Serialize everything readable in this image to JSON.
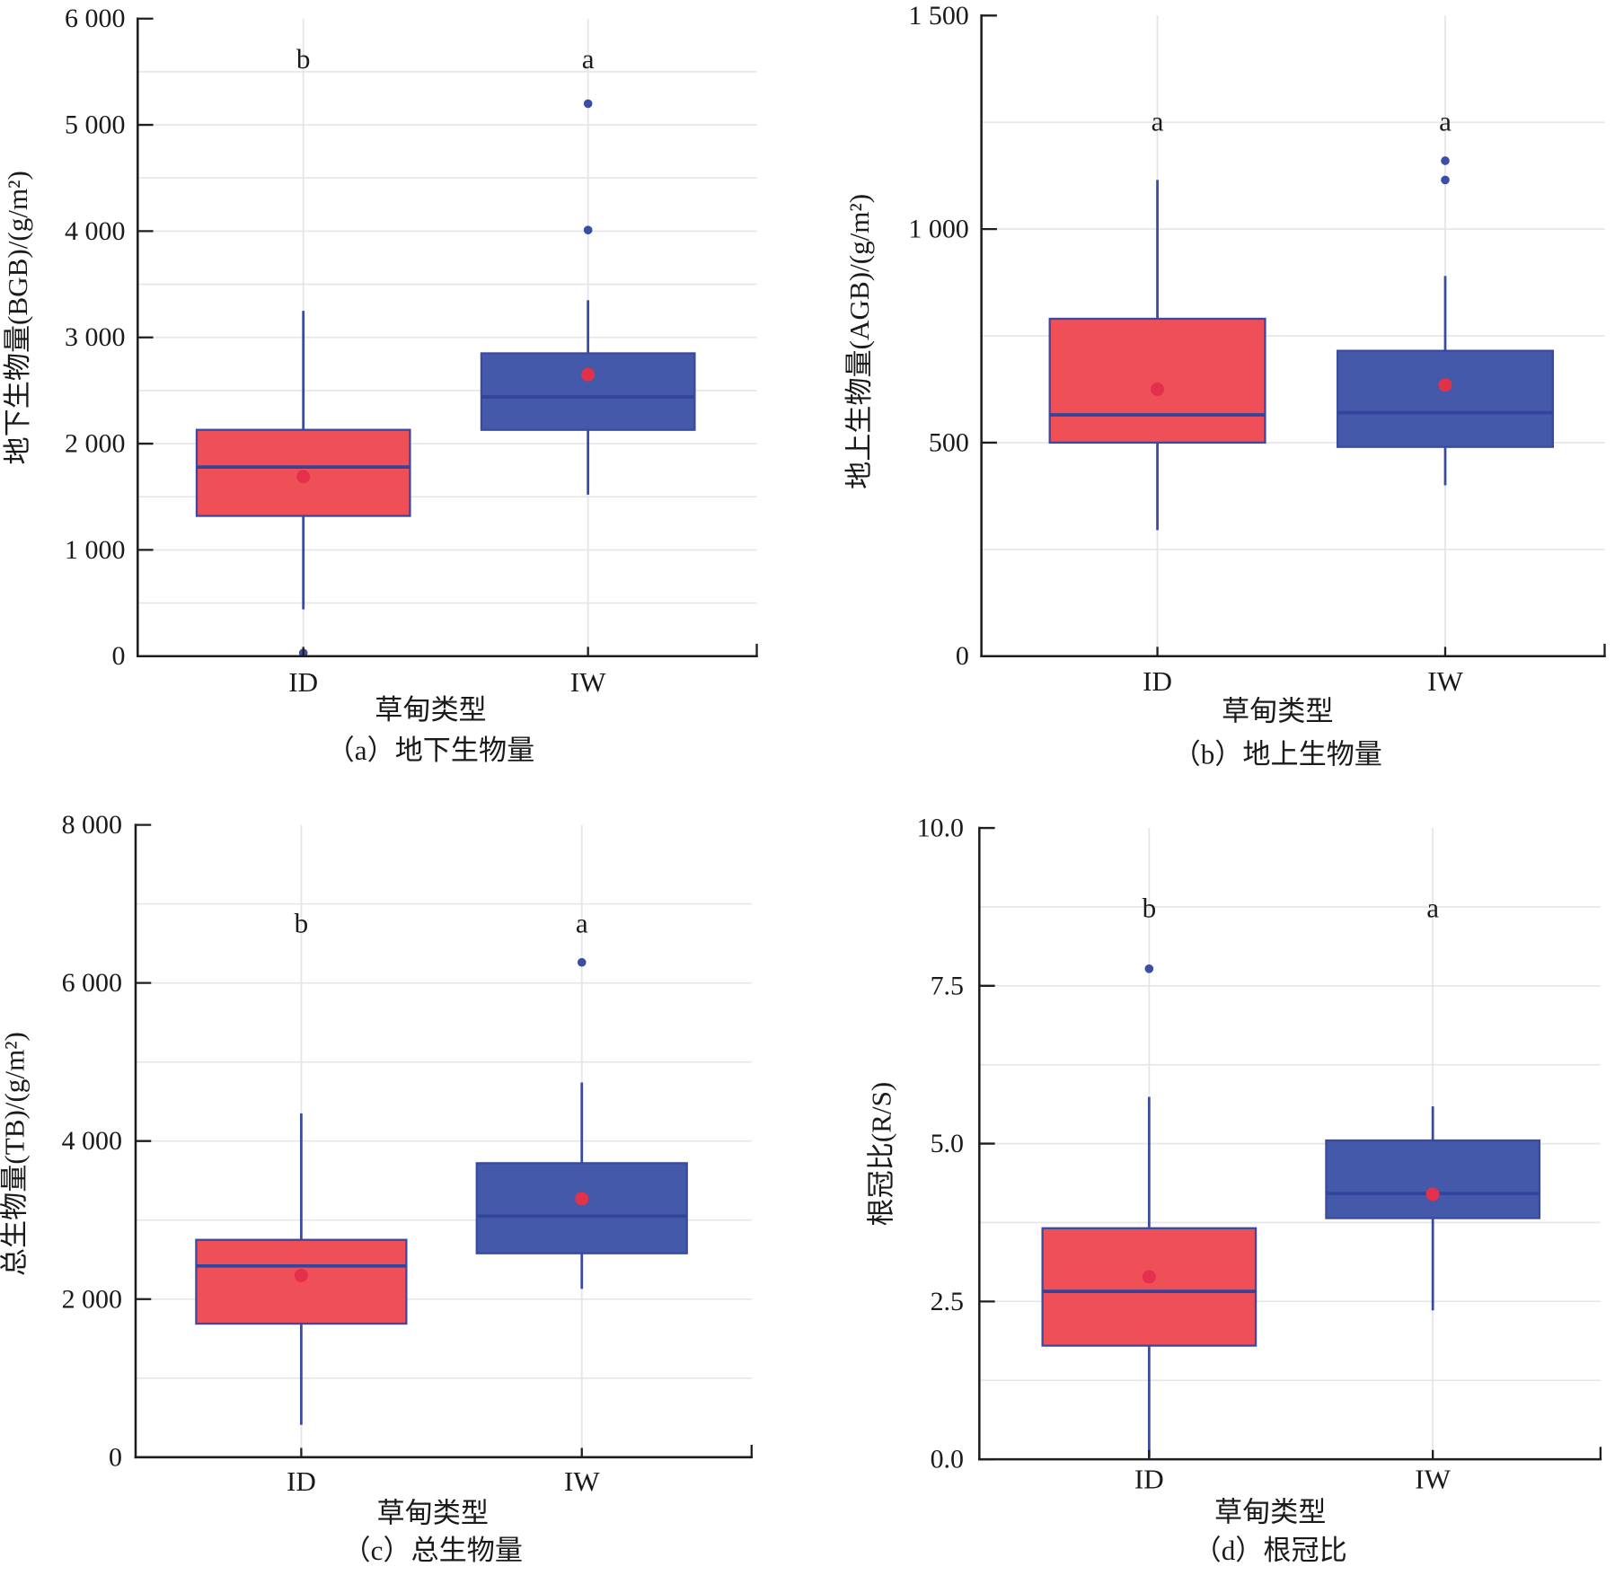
{
  "colors": {
    "box_outline": "#3a4aa0",
    "median_line": "#33449c",
    "whisker": "#3a4aa0",
    "mean_marker": "#e3304b",
    "outlier": "#3c4ea3",
    "grid": "#e5e5ea",
    "axis": "#1e1e1e"
  },
  "chart_data": [
    {
      "type": "box",
      "caption": "（a）地下生物量",
      "xlabel": "草甸类型",
      "ylabel": "地下生物量(BGB)/(g/m²)",
      "ylim": [
        0,
        6000
      ],
      "grid": true,
      "grid_step": 500,
      "yticks": [
        {
          "value": 0,
          "label": "0"
        },
        {
          "value": 1000,
          "label": "1 000"
        },
        {
          "value": 2000,
          "label": "2 000"
        },
        {
          "value": 3000,
          "label": "3 000"
        },
        {
          "value": 4000,
          "label": "4 000"
        },
        {
          "value": 5000,
          "label": "5 000"
        },
        {
          "value": 6000,
          "label": "6 000"
        }
      ],
      "categories": [
        "ID",
        "IW"
      ],
      "series": [
        {
          "letter": "b",
          "color": "#ef5057",
          "q1": 1320,
          "median": 1780,
          "q3": 2130,
          "mean": 1690,
          "whisker_low": 440,
          "whisker_high": 3250,
          "outliers": [
            30
          ]
        },
        {
          "letter": "a",
          "color": "#4459a9",
          "q1": 2130,
          "median": 2440,
          "q3": 2850,
          "mean": 2650,
          "whisker_low": 1520,
          "whisker_high": 3350,
          "outliers": [
            4010,
            5200
          ]
        }
      ]
    },
    {
      "type": "box",
      "caption": "（b）地上生物量",
      "xlabel": "草甸类型",
      "ylabel": "地上生物量(AGB)/(g/m²)",
      "ylim": [
        0,
        1500
      ],
      "grid": true,
      "grid_step": 250,
      "yticks": [
        {
          "value": 0,
          "label": "0"
        },
        {
          "value": 500,
          "label": "500"
        },
        {
          "value": 1000,
          "label": "1 000"
        },
        {
          "value": 1500,
          "label": "1 500"
        }
      ],
      "categories": [
        "ID",
        "IW"
      ],
      "series": [
        {
          "letter": "a",
          "color": "#ef5057",
          "q1": 500,
          "median": 565,
          "q3": 790,
          "mean": 625,
          "whisker_low": 295,
          "whisker_high": 1115,
          "outliers": []
        },
        {
          "letter": "a",
          "color": "#4459a9",
          "q1": 490,
          "median": 570,
          "q3": 715,
          "mean": 635,
          "whisker_low": 400,
          "whisker_high": 890,
          "outliers": [
            1115,
            1160
          ]
        }
      ]
    },
    {
      "type": "box",
      "caption": "（c）总生物量",
      "xlabel": "草甸类型",
      "ylabel": "总生物量(TB)/(g/m²)",
      "ylim": [
        0,
        8000
      ],
      "grid": true,
      "grid_step": 1000,
      "yticks": [
        {
          "value": 0,
          "label": "0"
        },
        {
          "value": 2000,
          "label": "2 000"
        },
        {
          "value": 4000,
          "label": "4 000"
        },
        {
          "value": 6000,
          "label": "6 000"
        },
        {
          "value": 8000,
          "label": "8 000"
        }
      ],
      "categories": [
        "ID",
        "IW"
      ],
      "series": [
        {
          "letter": "b",
          "color": "#ef5057",
          "q1": 1690,
          "median": 2420,
          "q3": 2750,
          "mean": 2300,
          "whisker_low": 410,
          "whisker_high": 4350,
          "outliers": []
        },
        {
          "letter": "a",
          "color": "#4459a9",
          "q1": 2580,
          "median": 3050,
          "q3": 3720,
          "mean": 3270,
          "whisker_low": 2130,
          "whisker_high": 4740,
          "outliers": [
            6260
          ]
        }
      ]
    },
    {
      "type": "box",
      "caption": "（d）根冠比",
      "xlabel": "草甸类型",
      "ylabel": "根冠比(R/S)",
      "ylim": [
        0,
        10
      ],
      "grid": true,
      "grid_step": 1.25,
      "yticks": [
        {
          "value": 0,
          "label": "0.0"
        },
        {
          "value": 2.5,
          "label": "2.5"
        },
        {
          "value": 5,
          "label": "5.0"
        },
        {
          "value": 7.5,
          "label": "7.5"
        },
        {
          "value": 10,
          "label": "10.0"
        }
      ],
      "categories": [
        "ID",
        "IW"
      ],
      "series": [
        {
          "letter": "b",
          "color": "#ef5057",
          "q1": 1.8,
          "median": 2.66,
          "q3": 3.66,
          "mean": 2.89,
          "whisker_low": 0.03,
          "whisker_high": 5.74,
          "outliers": [
            7.77
          ]
        },
        {
          "letter": "a",
          "color": "#4459a9",
          "q1": 3.82,
          "median": 4.21,
          "q3": 5.05,
          "mean": 4.2,
          "whisker_low": 2.36,
          "whisker_high": 5.59,
          "outliers": []
        }
      ]
    }
  ]
}
